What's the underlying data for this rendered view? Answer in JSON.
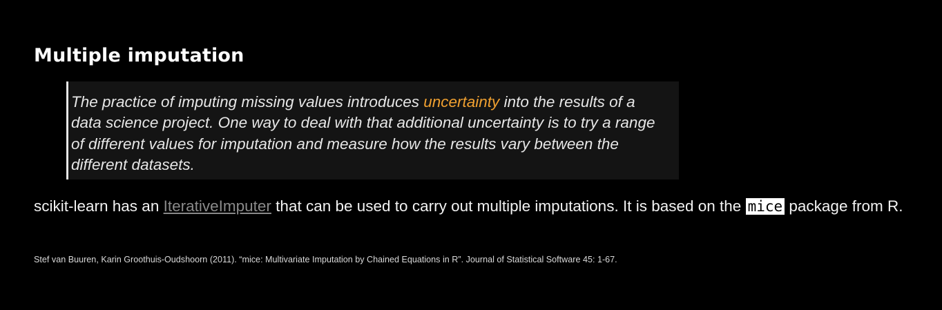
{
  "slide": {
    "title": "Multiple imputation",
    "quote": {
      "before": "The practice of imputing missing values introduces ",
      "highlight": "uncertainty",
      "after": " into the results of a data science project. One way to deal with that additional uncertainty is to try a range of different values for imputation and measure how the results vary between the different datasets."
    },
    "body": {
      "prefix": "scikit-learn has an ",
      "link_text": "IterativeImputer",
      "middle": " that can be used to carry out multiple imputations. It is based on the ",
      "code": "mice",
      "suffix": " package from R."
    },
    "citation": "Stef van Buuren, Karin Groothuis-Oudshoorn (2011). “mice: Multivariate Imputation by Chained Equations in R”. Journal of Statistical Software 45: 1-67."
  },
  "colors": {
    "background": "#000000",
    "text": "#ffffff",
    "highlight": "#f0a030",
    "link": "#8a8a8a",
    "quote_background": "#141414",
    "quote_border": "#e8e8e8"
  }
}
